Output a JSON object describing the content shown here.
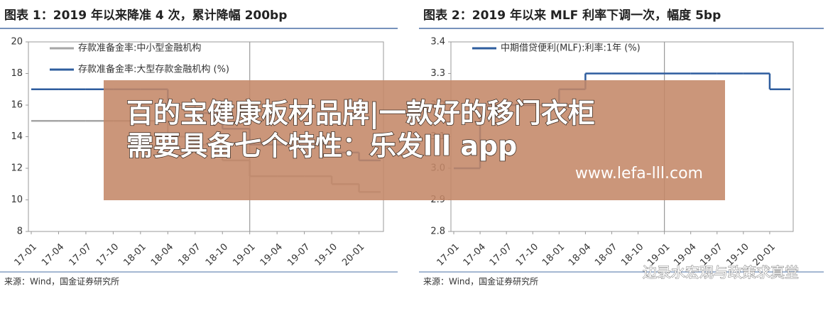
{
  "chart_data": [
    {
      "type": "step-line",
      "title": "图表 1：2019 年以来降准 4 次，累计降幅 200bp",
      "categories": [
        "17-01",
        "17-04",
        "17-07",
        "17-10",
        "18-01",
        "18-04",
        "18-07",
        "18-10",
        "19-01",
        "19-04",
        "19-07",
        "19-10",
        "20-01"
      ],
      "series": [
        {
          "name": "存款准备金率:中小型金融机构",
          "color": "#a6a6a6",
          "values": [
            15,
            15,
            15,
            15,
            15,
            14,
            13.5,
            12.5,
            11.5,
            11.5,
            11.5,
            11,
            10.5
          ]
        },
        {
          "name": "存款准备金率:大型存款金融机构 (%)",
          "color": "#2e5d9e",
          "values": [
            17,
            17,
            17,
            17,
            17,
            16,
            15.5,
            14.5,
            13.5,
            13.5,
            13.5,
            13,
            12.5
          ]
        }
      ],
      "ylim": [
        8,
        20
      ],
      "yticks": [
        8,
        10,
        12,
        14,
        16,
        18,
        20
      ],
      "source": "来源：Wind，国金证券研究所"
    },
    {
      "type": "step-line",
      "title": "图表 2：2019 年以来 MLF 利率下调一次，幅度 5bp",
      "categories": [
        "17-01",
        "17-04",
        "17-07",
        "17-10",
        "18-01",
        "18-04",
        "18-07",
        "18-10",
        "19-01",
        "19-04",
        "19-07",
        "19-10",
        "20-01"
      ],
      "series": [
        {
          "name": "中期借贷便利(MLF):利率:1年 (%)",
          "color": "#2e5d9e",
          "values": [
            3,
            3.2,
            3.2,
            3.2,
            3.25,
            3.3,
            3.3,
            3.3,
            3.3,
            3.3,
            3.3,
            3.3,
            3.25
          ]
        }
      ],
      "ylim": [
        2.8,
        3.4
      ],
      "yticks": [
        2.8,
        2.9,
        {
          "value": 3,
          "label": "3.0"
        },
        3.1,
        3.2,
        3.3,
        3.4
      ],
      "source": "来源：Wind，国金证券研究所"
    }
  ],
  "overlay": {
    "line1": "百的宝健康板材品牌|一款好的移门衣柜",
    "line2": "需要具备七个特性：乐发lll app",
    "url": "www.lefa-lll.com"
  },
  "watermark": "边录水宏观与政策求真堂"
}
